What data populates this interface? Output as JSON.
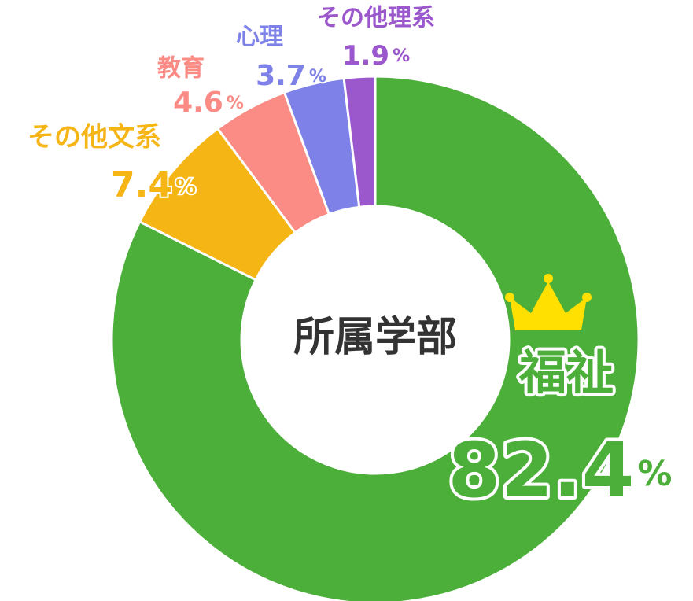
{
  "chart_data": {
    "type": "donut",
    "center_label": "所属学部",
    "unit": "%",
    "categories": [
      "福祉",
      "その他文系",
      "教育",
      "心理",
      "その他理系"
    ],
    "values": [
      82.4,
      7.4,
      4.6,
      3.7,
      1.9
    ],
    "colors": [
      "#4caf3a",
      "#f5b515",
      "#fb8c85",
      "#7e82e8",
      "#9b57cc"
    ]
  }
}
